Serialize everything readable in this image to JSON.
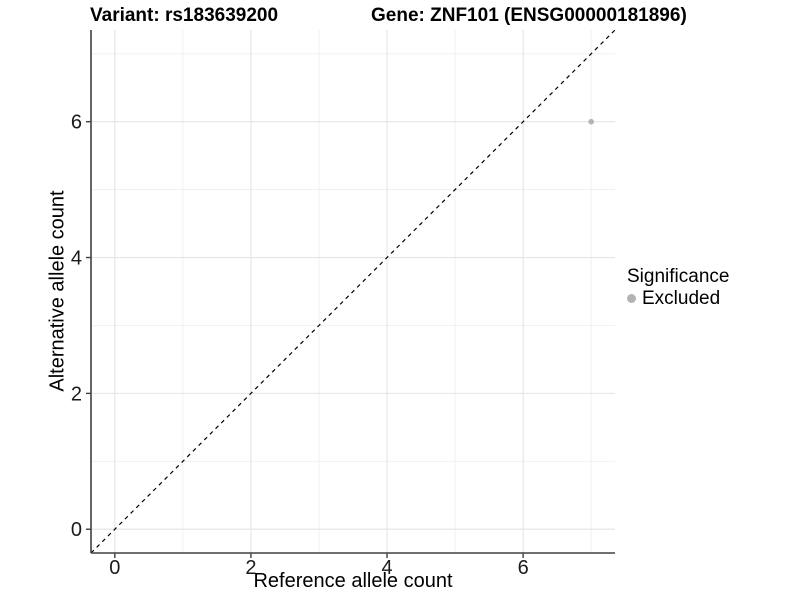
{
  "colors": {
    "background": "#ffffff",
    "axis_line": "#404040",
    "tick_mark": "#404040",
    "grid_major": "#e4e4e4",
    "grid_minor": "#efefef",
    "tick_label": "#1a1a1a",
    "text": "#000000",
    "reference_line": "#000000",
    "point": "#b3b3b3"
  },
  "chart_data": {
    "type": "scatter",
    "title_left": "Variant: rs183639200",
    "title_right": "Gene: ZNF101 (ENSG00000181896)",
    "xlabel": "Reference allele count",
    "ylabel": "Alternative allele count",
    "xlim": [
      -0.35,
      7.35
    ],
    "ylim": [
      -0.35,
      7.35
    ],
    "x_ticks": [
      0,
      2,
      4,
      6
    ],
    "y_ticks": [
      0,
      2,
      4,
      6
    ],
    "grid": {
      "visible": true,
      "major": [
        0,
        2,
        4,
        6
      ],
      "minor": [
        1,
        3,
        5,
        7
      ]
    },
    "reference_line": {
      "style": "dashed",
      "slope": 1,
      "intercept": 0
    },
    "series": [
      {
        "name": "Excluded",
        "color": "#b3b3b3",
        "points": [
          {
            "x": 7,
            "y": 6
          }
        ]
      }
    ],
    "legend": {
      "title": "Significance",
      "position": "right",
      "entries": [
        {
          "label": "Excluded",
          "color": "#b3b3b3"
        }
      ]
    }
  }
}
